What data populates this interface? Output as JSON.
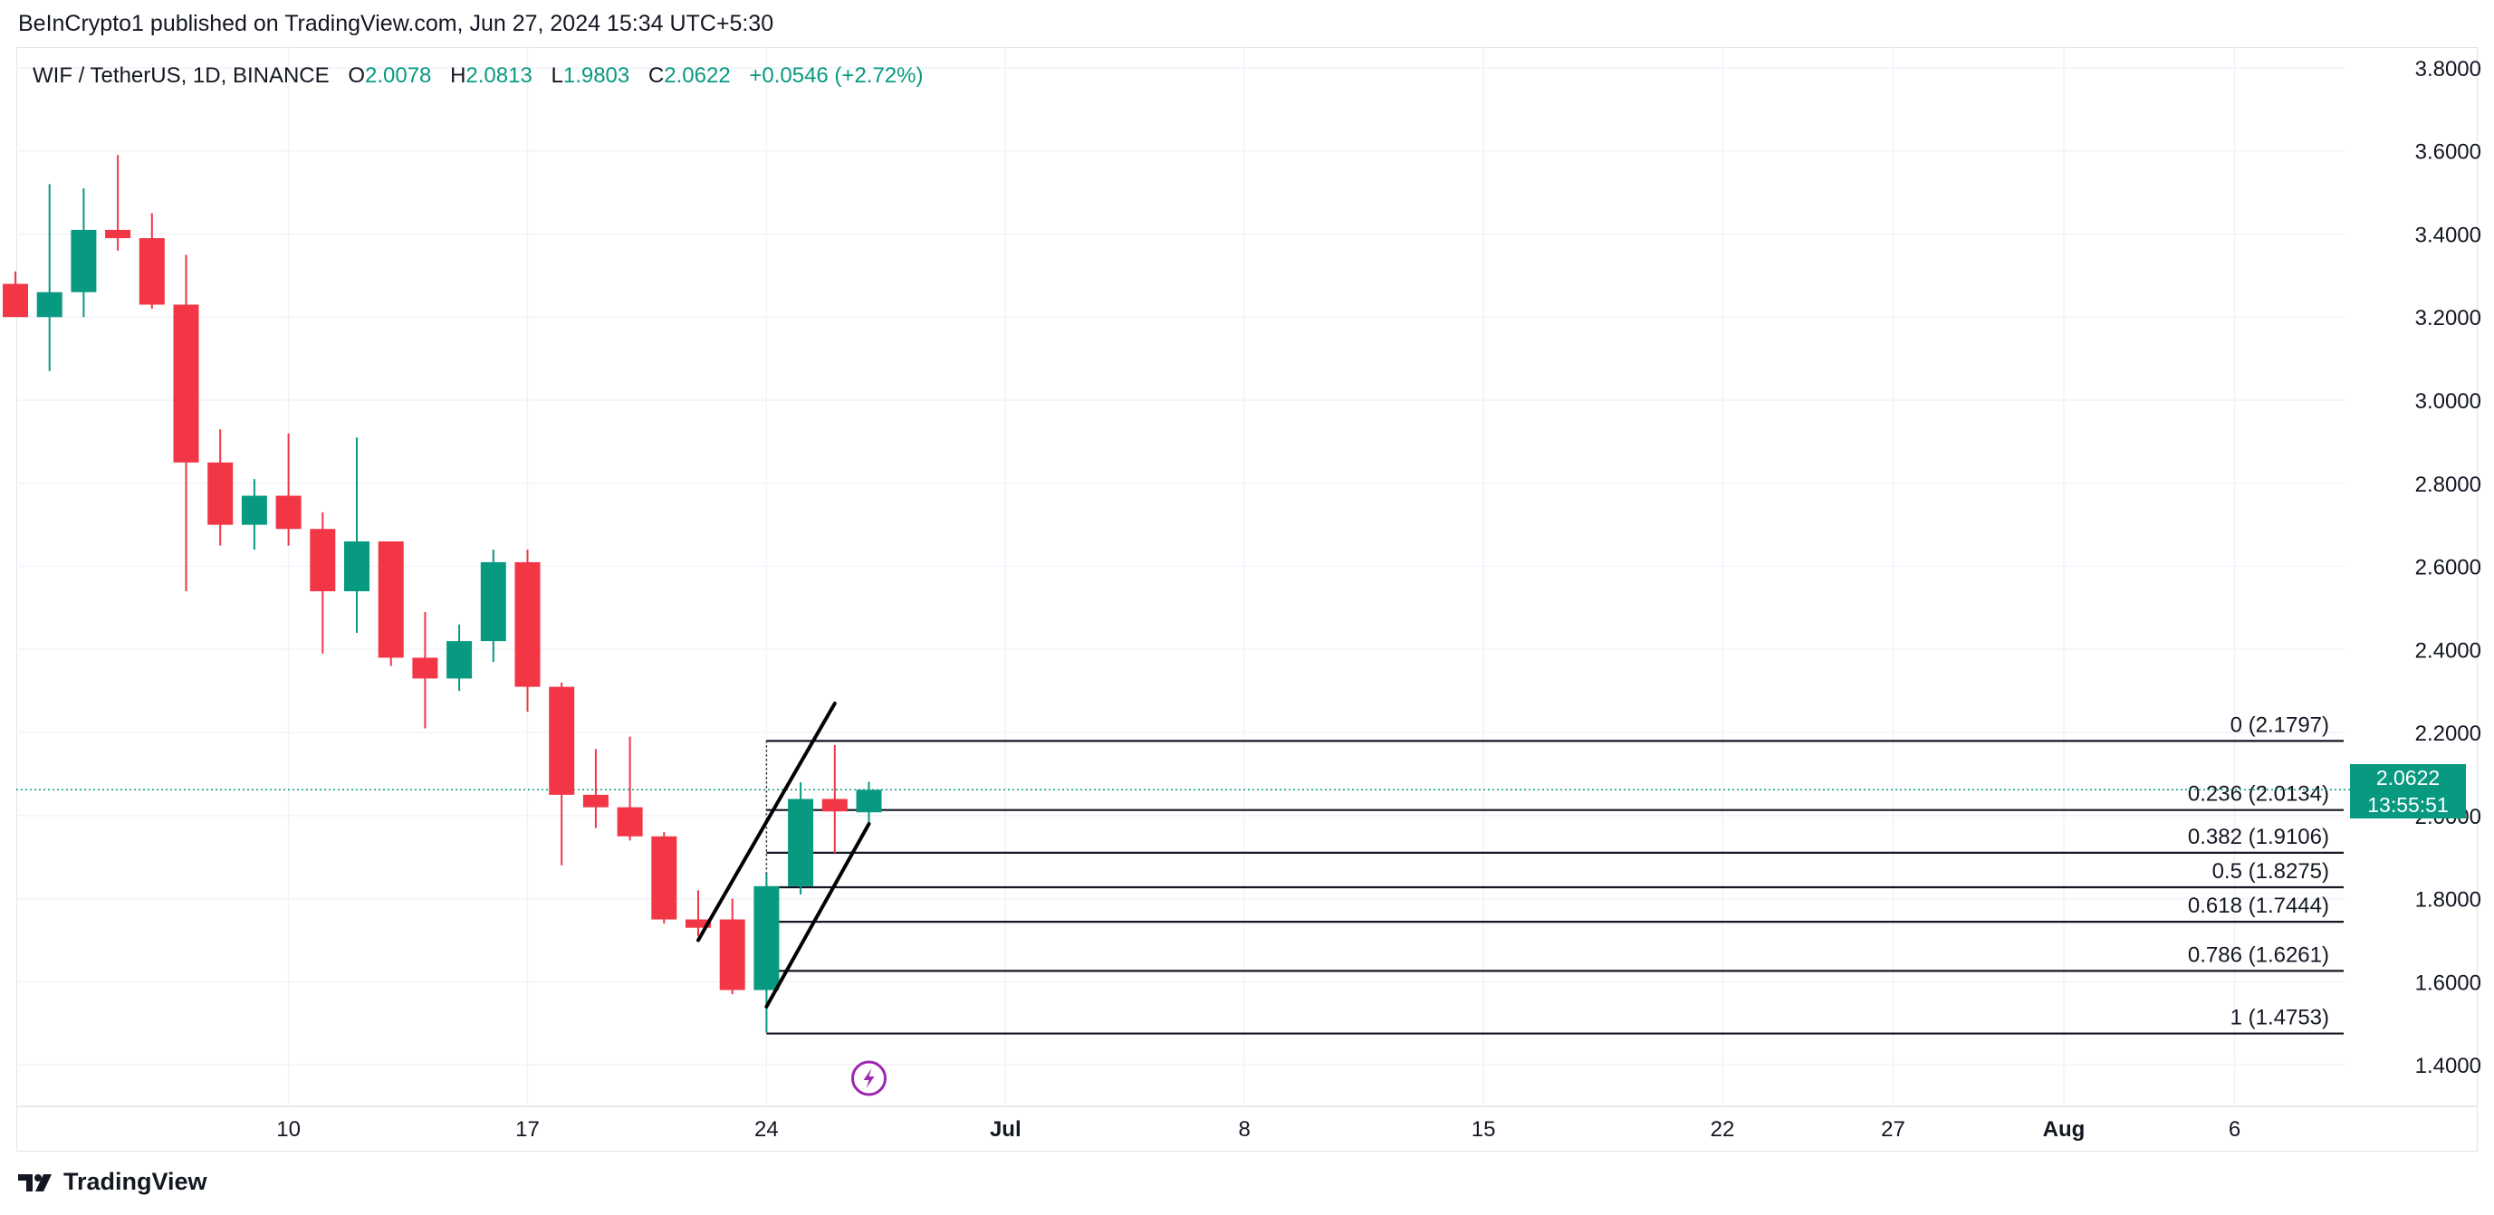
{
  "publisher_line": "BeInCrypto1 published on TradingView.com, Jun 27, 2024 15:34 UTC+5:30",
  "legend": {
    "symbol": "WIF / TetherUS, 1D, BINANCE",
    "open_label": "O",
    "open": "2.0078",
    "high_label": "H",
    "high": "2.0813",
    "low_label": "L",
    "low": "1.9803",
    "close_label": "C",
    "close": "2.0622",
    "change": "+0.0546 (+2.72%)"
  },
  "last_price": {
    "value": "2.0622",
    "countdown": "13:55:51"
  },
  "brand": "TradingView",
  "icons": {
    "brand": "tradingview-logo-icon",
    "event": "lightning-event-icon"
  },
  "colors": {
    "up": "#089981",
    "down": "#F23645",
    "grid": "#f0f3fa",
    "fib": "#131722"
  },
  "chart_data": {
    "type": "candlestick",
    "interval": "1D",
    "ylim": [
      1.3,
      3.85
    ],
    "y_ticks": [
      "3.8000",
      "3.6000",
      "3.4000",
      "3.2000",
      "3.0000",
      "2.8000",
      "2.6000",
      "2.4000",
      "2.2000",
      "2.0000",
      "1.8000",
      "1.6000",
      "1.4000"
    ],
    "x_ticks": [
      "10",
      "17",
      "24",
      "Jul",
      "8",
      "15",
      "22",
      "27",
      "Aug",
      "6"
    ],
    "candles": [
      {
        "date": "2024-06-02",
        "open": 3.28,
        "high": 3.31,
        "low": 3.2,
        "close": 3.2
      },
      {
        "date": "2024-06-03",
        "open": 3.2,
        "high": 3.52,
        "low": 3.07,
        "close": 3.26
      },
      {
        "date": "2024-06-04",
        "open": 3.26,
        "high": 3.51,
        "low": 3.2,
        "close": 3.41
      },
      {
        "date": "2024-06-05",
        "open": 3.41,
        "high": 3.59,
        "low": 3.36,
        "close": 3.39
      },
      {
        "date": "2024-06-06",
        "open": 3.39,
        "high": 3.45,
        "low": 3.22,
        "close": 3.23
      },
      {
        "date": "2024-06-07",
        "open": 3.23,
        "high": 3.35,
        "low": 2.54,
        "close": 2.85
      },
      {
        "date": "2024-06-08",
        "open": 2.85,
        "high": 2.93,
        "low": 2.65,
        "close": 2.7
      },
      {
        "date": "2024-06-09",
        "open": 2.7,
        "high": 2.81,
        "low": 2.64,
        "close": 2.77
      },
      {
        "date": "2024-06-10",
        "open": 2.77,
        "high": 2.92,
        "low": 2.65,
        "close": 2.69
      },
      {
        "date": "2024-06-11",
        "open": 2.69,
        "high": 2.73,
        "low": 2.39,
        "close": 2.54
      },
      {
        "date": "2024-06-12",
        "open": 2.54,
        "high": 2.91,
        "low": 2.44,
        "close": 2.66
      },
      {
        "date": "2024-06-13",
        "open": 2.66,
        "high": 2.66,
        "low": 2.36,
        "close": 2.38
      },
      {
        "date": "2024-06-14",
        "open": 2.38,
        "high": 2.49,
        "low": 2.21,
        "close": 2.33
      },
      {
        "date": "2024-06-15",
        "open": 2.33,
        "high": 2.46,
        "low": 2.3,
        "close": 2.42
      },
      {
        "date": "2024-06-16",
        "open": 2.42,
        "high": 2.64,
        "low": 2.37,
        "close": 2.61
      },
      {
        "date": "2024-06-17",
        "open": 2.61,
        "high": 2.64,
        "low": 2.25,
        "close": 2.31
      },
      {
        "date": "2024-06-18",
        "open": 2.31,
        "high": 2.32,
        "low": 1.88,
        "close": 2.05
      },
      {
        "date": "2024-06-19",
        "open": 2.05,
        "high": 2.16,
        "low": 1.97,
        "close": 2.02
      },
      {
        "date": "2024-06-20",
        "open": 2.02,
        "high": 2.19,
        "low": 1.94,
        "close": 1.95
      },
      {
        "date": "2024-06-21",
        "open": 1.95,
        "high": 1.96,
        "low": 1.74,
        "close": 1.75
      },
      {
        "date": "2024-06-22",
        "open": 1.75,
        "high": 1.82,
        "low": 1.71,
        "close": 1.73
      },
      {
        "date": "2024-06-23",
        "open": 1.75,
        "high": 1.8,
        "low": 1.57,
        "close": 1.58
      },
      {
        "date": "2024-06-24",
        "open": 1.58,
        "high": 1.86,
        "low": 1.48,
        "close": 1.83
      },
      {
        "date": "2024-06-25",
        "open": 1.83,
        "high": 2.08,
        "low": 1.81,
        "close": 2.04
      },
      {
        "date": "2024-06-26",
        "open": 2.04,
        "high": 2.17,
        "low": 1.91,
        "close": 2.01
      },
      {
        "date": "2024-06-27",
        "open": 2.0078,
        "high": 2.0813,
        "low": 1.9803,
        "close": 2.0622
      }
    ],
    "fibonacci": [
      {
        "label": "0 (2.1797)",
        "level": 0,
        "price": 2.1797
      },
      {
        "label": "0.236 (2.0134)",
        "level": 0.236,
        "price": 2.0134
      },
      {
        "label": "0.382 (1.9106)",
        "level": 0.382,
        "price": 1.9106
      },
      {
        "label": "0.5 (1.8275)",
        "level": 0.5,
        "price": 1.8275
      },
      {
        "label": "0.618 (1.7444)",
        "level": 0.618,
        "price": 1.7444
      },
      {
        "label": "0.786 (1.6261)",
        "level": 0.786,
        "price": 1.6261
      },
      {
        "label": "1 (1.4753)",
        "level": 1,
        "price": 1.4753
      }
    ],
    "channel_lines": [
      {
        "from": {
          "date": "2024-06-22",
          "price": 1.7
        },
        "to": {
          "date": "2024-06-26",
          "price": 2.27
        }
      },
      {
        "from": {
          "date": "2024-06-24",
          "price": 1.54
        },
        "to": {
          "date": "2024-06-27",
          "price": 1.98
        }
      }
    ],
    "last_price": 2.0622
  }
}
